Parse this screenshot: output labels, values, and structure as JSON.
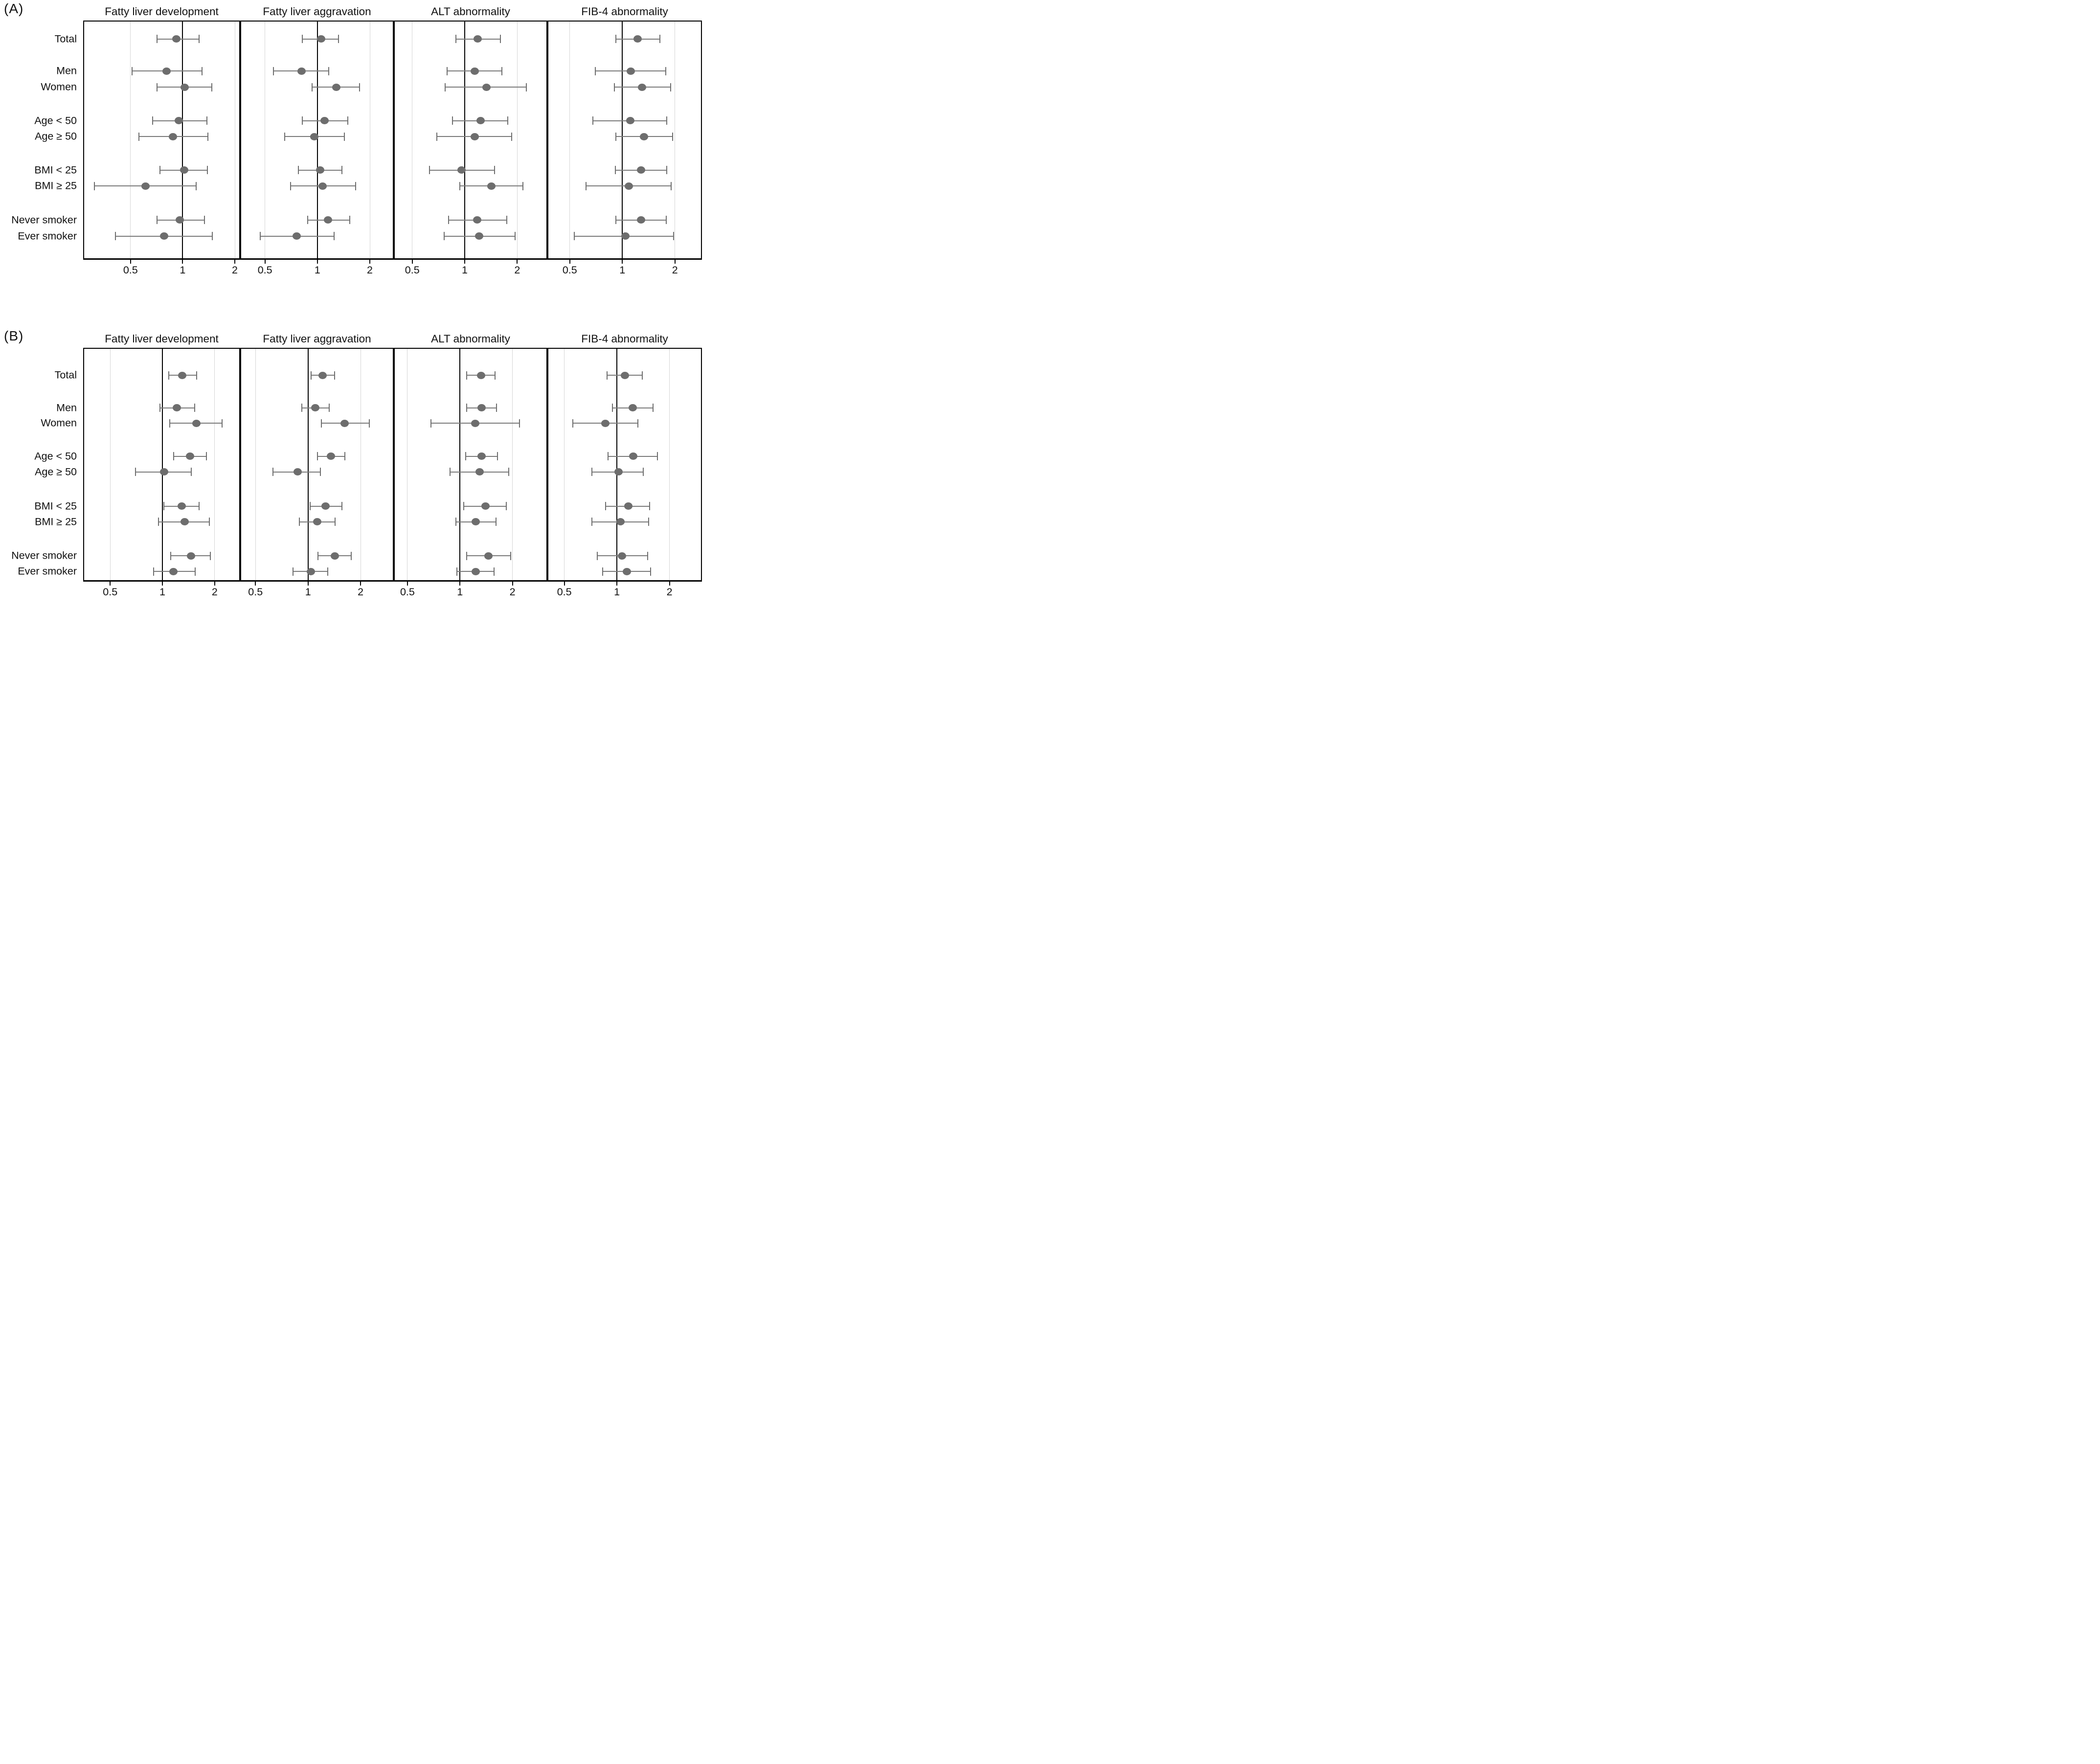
{
  "figure": {
    "panels": [
      {
        "label": "(A)"
      },
      {
        "label": "(B)"
      }
    ],
    "row_labels": [
      "Total",
      "Men",
      "Women",
      "Age < 50",
      "Age ≥ 50",
      "BMI < 25",
      "BMI ≥ 25",
      "Never smoker",
      "Ever smoker"
    ],
    "column_titles": [
      "Fatty liver development",
      "Fatty liver aggravation",
      "ALT abnormality",
      "FIB-4 abnormality"
    ],
    "x_tick_labels": [
      "0.5",
      "1",
      "2"
    ],
    "colors": {
      "point": "#6d6d6d",
      "ci_line": "#7b7b7b",
      "ci_cap": "#6f6f6f",
      "reference_line": "#000000",
      "gridline": "#d6d6d6",
      "border": "#000000"
    }
  },
  "chart_data": [
    {
      "type": "forest",
      "panel": "A",
      "title": "Fatty liver development",
      "axis": {
        "scale": "log",
        "ticks": [
          0.5,
          1,
          2
        ],
        "tick_labels": [
          "0.5",
          "1",
          "2"
        ],
        "domain": [
          0.27,
          2.12
        ]
      },
      "rows": [
        {
          "label": "Total",
          "or": 0.92,
          "ci": [
            0.71,
            1.24
          ]
        },
        {
          "label": "Men",
          "or": 0.81,
          "ci": [
            0.51,
            1.29
          ]
        },
        {
          "label": "Women",
          "or": 1.03,
          "ci": [
            0.71,
            1.47
          ]
        },
        {
          "label": "Age < 50",
          "or": 0.95,
          "ci": [
            0.67,
            1.38
          ]
        },
        {
          "label": "Age ≥ 50",
          "or": 0.88,
          "ci": [
            0.56,
            1.4
          ]
        },
        {
          "label": "BMI < 25",
          "or": 1.02,
          "ci": [
            0.74,
            1.39
          ]
        },
        {
          "label": "BMI ≥ 25",
          "or": 0.61,
          "ci": [
            0.31,
            1.2
          ]
        },
        {
          "label": "Never smoker",
          "or": 0.96,
          "ci": [
            0.71,
            1.34
          ]
        },
        {
          "label": "Ever smoker",
          "or": 0.78,
          "ci": [
            0.41,
            1.48
          ]
        }
      ]
    },
    {
      "type": "forest",
      "panel": "A",
      "title": "Fatty liver aggravation",
      "axis": {
        "scale": "log",
        "ticks": [
          0.5,
          1,
          2
        ],
        "tick_labels": [
          "0.5",
          "1",
          "2"
        ],
        "domain": [
          0.365,
          2.71
        ]
      },
      "rows": [
        {
          "label": "Total",
          "or": 1.05,
          "ci": [
            0.82,
            1.32
          ]
        },
        {
          "label": "Men",
          "or": 0.81,
          "ci": [
            0.56,
            1.16
          ]
        },
        {
          "label": "Women",
          "or": 1.28,
          "ci": [
            0.93,
            1.75
          ]
        },
        {
          "label": "Age < 50",
          "or": 1.1,
          "ci": [
            0.82,
            1.49
          ]
        },
        {
          "label": "Age ≥ 50",
          "or": 0.96,
          "ci": [
            0.65,
            1.43
          ]
        },
        {
          "label": "BMI < 25",
          "or": 1.04,
          "ci": [
            0.78,
            1.38
          ]
        },
        {
          "label": "BMI ≥ 25",
          "or": 1.07,
          "ci": [
            0.7,
            1.66
          ]
        },
        {
          "label": "Never smoker",
          "or": 1.15,
          "ci": [
            0.88,
            1.53
          ]
        },
        {
          "label": "Ever smoker",
          "or": 0.76,
          "ci": [
            0.47,
            1.25
          ]
        }
      ]
    },
    {
      "type": "forest",
      "panel": "A",
      "title": "ALT abnormality",
      "axis": {
        "scale": "log",
        "ticks": [
          0.5,
          1,
          2
        ],
        "tick_labels": [
          "0.5",
          "1",
          "2"
        ],
        "domain": [
          0.397,
          2.94
        ]
      },
      "rows": [
        {
          "label": "Total",
          "or": 1.19,
          "ci": [
            0.89,
            1.6
          ]
        },
        {
          "label": "Men",
          "or": 1.14,
          "ci": [
            0.79,
            1.63
          ]
        },
        {
          "label": "Women",
          "or": 1.33,
          "ci": [
            0.77,
            2.26
          ]
        },
        {
          "label": "Age < 50",
          "or": 1.23,
          "ci": [
            0.85,
            1.77
          ]
        },
        {
          "label": "Age ≥ 50",
          "or": 1.14,
          "ci": [
            0.69,
            1.86
          ]
        },
        {
          "label": "BMI < 25",
          "or": 0.96,
          "ci": [
            0.63,
            1.48
          ]
        },
        {
          "label": "BMI ≥ 25",
          "or": 1.42,
          "ci": [
            0.94,
            2.15
          ]
        },
        {
          "label": "Never smoker",
          "or": 1.18,
          "ci": [
            0.81,
            1.74
          ]
        },
        {
          "label": "Ever smoker",
          "or": 1.21,
          "ci": [
            0.76,
            1.94
          ]
        }
      ]
    },
    {
      "type": "forest",
      "panel": "A",
      "title": "FIB-4 abnormality",
      "axis": {
        "scale": "log",
        "ticks": [
          0.5,
          1,
          2
        ],
        "tick_labels": [
          "0.5",
          "1",
          "2"
        ],
        "domain": [
          0.377,
          2.82
        ]
      },
      "rows": [
        {
          "label": "Total",
          "or": 1.22,
          "ci": [
            0.92,
            1.64
          ]
        },
        {
          "label": "Men",
          "or": 1.12,
          "ci": [
            0.7,
            1.77
          ]
        },
        {
          "label": "Women",
          "or": 1.3,
          "ci": [
            0.9,
            1.89
          ]
        },
        {
          "label": "Age < 50",
          "or": 1.11,
          "ci": [
            0.68,
            1.8
          ]
        },
        {
          "label": "Age ≥ 50",
          "or": 1.33,
          "ci": [
            0.92,
            1.94
          ]
        },
        {
          "label": "BMI < 25",
          "or": 1.28,
          "ci": [
            0.91,
            1.8
          ]
        },
        {
          "label": "BMI ≥ 25",
          "or": 1.09,
          "ci": [
            0.62,
            1.9
          ]
        },
        {
          "label": "Never smoker",
          "or": 1.28,
          "ci": [
            0.92,
            1.78
          ]
        },
        {
          "label": "Ever smoker",
          "or": 1.04,
          "ci": [
            0.53,
            1.96
          ]
        }
      ]
    },
    {
      "type": "forest",
      "panel": "B",
      "title": "Fatty liver development",
      "axis": {
        "scale": "log",
        "ticks": [
          0.5,
          1,
          2
        ],
        "tick_labels": [
          "0.5",
          "1",
          "2"
        ],
        "domain": [
          0.354,
          2.77
        ]
      },
      "rows": [
        {
          "label": "Total",
          "or": 1.3,
          "ci": [
            1.09,
            1.58
          ]
        },
        {
          "label": "Men",
          "or": 1.21,
          "ci": [
            0.97,
            1.53
          ]
        },
        {
          "label": "Women",
          "or": 1.57,
          "ci": [
            1.1,
            2.2
          ]
        },
        {
          "label": "Age < 50",
          "or": 1.44,
          "ci": [
            1.16,
            1.79
          ]
        },
        {
          "label": "Age ≥ 50",
          "or": 1.02,
          "ci": [
            0.7,
            1.47
          ]
        },
        {
          "label": "BMI < 25",
          "or": 1.29,
          "ci": [
            1.02,
            1.63
          ]
        },
        {
          "label": "BMI ≥ 25",
          "or": 1.34,
          "ci": [
            0.95,
            1.86
          ]
        },
        {
          "label": "Never smoker",
          "or": 1.46,
          "ci": [
            1.12,
            1.89
          ]
        },
        {
          "label": "Ever smoker",
          "or": 1.16,
          "ci": [
            0.89,
            1.54
          ]
        }
      ]
    },
    {
      "type": "forest",
      "panel": "B",
      "title": "Fatty liver aggravation",
      "axis": {
        "scale": "log",
        "ticks": [
          0.5,
          1,
          2
        ],
        "tick_labels": [
          "0.5",
          "1",
          "2"
        ],
        "domain": [
          0.414,
          3.06
        ]
      },
      "rows": [
        {
          "label": "Total",
          "or": 1.21,
          "ci": [
            1.04,
            1.42
          ]
        },
        {
          "label": "Men",
          "or": 1.1,
          "ci": [
            0.92,
            1.32
          ]
        },
        {
          "label": "Women",
          "or": 1.62,
          "ci": [
            1.19,
            2.24
          ]
        },
        {
          "label": "Age < 50",
          "or": 1.35,
          "ci": [
            1.13,
            1.63
          ]
        },
        {
          "label": "Age ≥ 50",
          "or": 0.87,
          "ci": [
            0.63,
            1.18
          ]
        },
        {
          "label": "BMI < 25",
          "or": 1.26,
          "ci": [
            1.03,
            1.56
          ]
        },
        {
          "label": "BMI ≥ 25",
          "or": 1.13,
          "ci": [
            0.89,
            1.43
          ]
        },
        {
          "label": "Never smoker",
          "or": 1.42,
          "ci": [
            1.14,
            1.77
          ]
        },
        {
          "label": "Ever smoker",
          "or": 1.04,
          "ci": [
            0.82,
            1.3
          ]
        }
      ]
    },
    {
      "type": "forest",
      "panel": "B",
      "title": "ALT abnormality",
      "axis": {
        "scale": "log",
        "ticks": [
          0.5,
          1,
          2
        ],
        "tick_labels": [
          "0.5",
          "1",
          "2"
        ],
        "domain": [
          0.423,
          3.13
        ]
      },
      "rows": [
        {
          "label": "Total",
          "or": 1.32,
          "ci": [
            1.09,
            1.59
          ]
        },
        {
          "label": "Men",
          "or": 1.33,
          "ci": [
            1.09,
            1.62
          ]
        },
        {
          "label": "Women",
          "or": 1.22,
          "ci": [
            0.68,
            2.19
          ]
        },
        {
          "label": "Age < 50",
          "or": 1.33,
          "ci": [
            1.08,
            1.64
          ]
        },
        {
          "label": "Age ≥ 50",
          "or": 1.3,
          "ci": [
            0.88,
            1.91
          ]
        },
        {
          "label": "BMI < 25",
          "or": 1.4,
          "ci": [
            1.05,
            1.84
          ]
        },
        {
          "label": "BMI ≥ 25",
          "or": 1.23,
          "ci": [
            0.95,
            1.61
          ]
        },
        {
          "label": "Never smoker",
          "or": 1.46,
          "ci": [
            1.09,
            1.96
          ]
        },
        {
          "label": "Ever smoker",
          "or": 1.23,
          "ci": [
            0.96,
            1.57
          ]
        }
      ]
    },
    {
      "type": "forest",
      "panel": "B",
      "title": "FIB-4 abnormality",
      "axis": {
        "scale": "log",
        "ticks": [
          0.5,
          1,
          2
        ],
        "tick_labels": [
          "0.5",
          "1",
          "2"
        ],
        "domain": [
          0.405,
          3.03
        ]
      },
      "rows": [
        {
          "label": "Total",
          "or": 1.11,
          "ci": [
            0.88,
            1.4
          ]
        },
        {
          "label": "Men",
          "or": 1.23,
          "ci": [
            0.94,
            1.61
          ]
        },
        {
          "label": "Women",
          "or": 0.86,
          "ci": [
            0.56,
            1.32
          ]
        },
        {
          "label": "Age < 50",
          "or": 1.24,
          "ci": [
            0.89,
            1.71
          ]
        },
        {
          "label": "Age ≥ 50",
          "or": 1.02,
          "ci": [
            0.72,
            1.42
          ]
        },
        {
          "label": "BMI < 25",
          "or": 1.16,
          "ci": [
            0.86,
            1.54
          ]
        },
        {
          "label": "BMI ≥ 25",
          "or": 1.05,
          "ci": [
            0.72,
            1.52
          ]
        },
        {
          "label": "Never smoker",
          "or": 1.07,
          "ci": [
            0.77,
            1.5
          ]
        },
        {
          "label": "Ever smoker",
          "or": 1.14,
          "ci": [
            0.83,
            1.56
          ]
        }
      ]
    }
  ]
}
